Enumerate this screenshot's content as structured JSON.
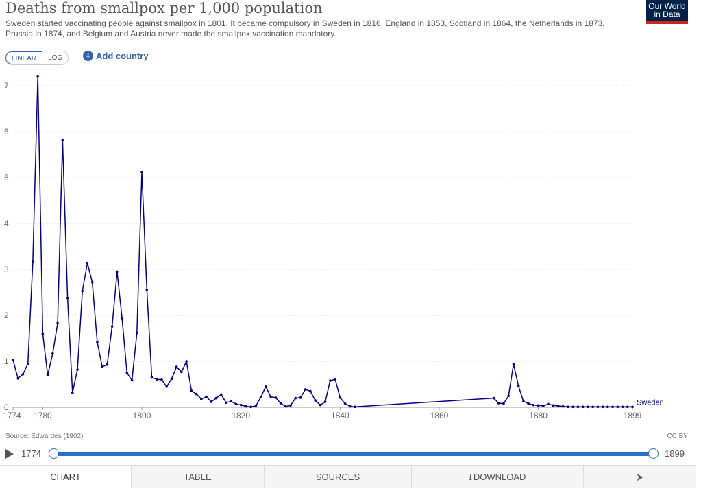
{
  "header": {
    "title": "Deaths from smallpox per 1,000 population",
    "subtitle": "Sweden started vaccinating people against smallpox in 1801. It became compulsory in Sweden in 1816, England in 1853, Scotland in 1864, the Netherlands in 1873, Prussia in 1874, and Belgium and Austria never made the smallpox vaccination mandatory.",
    "logo_line1": "Our World",
    "logo_line2": "in Data"
  },
  "controls": {
    "linear_label": "LINEAR",
    "log_label": "LOG",
    "add_country_label": "Add country",
    "active_scale": "linear"
  },
  "footer": {
    "source": "Source: Edwardes (1902)",
    "license": "CC BY"
  },
  "timeline": {
    "start_label": "1774",
    "end_label": "1899"
  },
  "tabs": {
    "chart": "CHART",
    "table": "TABLE",
    "sources": "SOURCES",
    "download": "DOWNLOAD"
  },
  "colors": {
    "series": "#000080",
    "accent": "#3360a9",
    "timeline": "#2a72c9",
    "logo_bg": "#002147",
    "logo_bar": "#ce261e"
  },
  "chart_data": {
    "type": "line",
    "title": "Deaths from smallpox per 1,000 population",
    "xlim": [
      1774,
      1899
    ],
    "ylim": [
      0,
      7.3
    ],
    "x_ticks": [
      "1774",
      "1780",
      "1800",
      "1820",
      "1840",
      "1860",
      "1880",
      "1899"
    ],
    "x_tick_values": [
      1774,
      1780,
      1800,
      1820,
      1840,
      1860,
      1880,
      1899
    ],
    "y_ticks": [
      0,
      1,
      2,
      3,
      4,
      5,
      6,
      7
    ],
    "grid": "horizontal dotted",
    "series": [
      {
        "name": "Sweden",
        "x": [
          1774,
          1775,
          1776,
          1777,
          1778,
          1779,
          1780,
          1781,
          1782,
          1783,
          1784,
          1785,
          1786,
          1787,
          1788,
          1789,
          1790,
          1791,
          1792,
          1793,
          1794,
          1795,
          1796,
          1797,
          1798,
          1799,
          1800,
          1801,
          1802,
          1803,
          1804,
          1805,
          1806,
          1807,
          1808,
          1809,
          1810,
          1811,
          1812,
          1813,
          1814,
          1815,
          1816,
          1817,
          1818,
          1819,
          1820,
          1821,
          1822,
          1823,
          1824,
          1825,
          1826,
          1827,
          1828,
          1829,
          1830,
          1831,
          1832,
          1833,
          1834,
          1835,
          1836,
          1837,
          1838,
          1839,
          1840,
          1841,
          1842,
          1843,
          1871,
          1872,
          1873,
          1874,
          1875,
          1876,
          1877,
          1878,
          1879,
          1880,
          1881,
          1882,
          1883,
          1884,
          1885,
          1886,
          1887,
          1888,
          1889,
          1890,
          1891,
          1892,
          1893,
          1894,
          1895,
          1896,
          1897,
          1898,
          1899
        ],
        "values": [
          1.03,
          0.63,
          0.72,
          0.95,
          3.18,
          7.2,
          1.6,
          0.7,
          1.17,
          1.83,
          5.82,
          2.38,
          0.32,
          0.82,
          2.53,
          3.14,
          2.72,
          1.42,
          0.88,
          0.93,
          1.76,
          2.95,
          1.94,
          0.75,
          0.59,
          1.62,
          5.12,
          2.56,
          0.65,
          0.61,
          0.6,
          0.45,
          0.62,
          0.88,
          0.77,
          1.0,
          0.36,
          0.29,
          0.18,
          0.23,
          0.12,
          0.2,
          0.28,
          0.1,
          0.13,
          0.07,
          0.05,
          0.02,
          0.01,
          0.03,
          0.22,
          0.45,
          0.23,
          0.21,
          0.09,
          0.02,
          0.04,
          0.2,
          0.21,
          0.39,
          0.35,
          0.15,
          0.05,
          0.12,
          0.58,
          0.61,
          0.21,
          0.08,
          0.02,
          0.01,
          0.2,
          0.09,
          0.08,
          0.25,
          0.94,
          0.46,
          0.13,
          0.08,
          0.05,
          0.04,
          0.03,
          0.07,
          0.04,
          0.03,
          0.02,
          0.01,
          0.01,
          0.01,
          0.01,
          0.01,
          0.01,
          0.01,
          0.01,
          0.01,
          0.01,
          0.01,
          0.01,
          0.01,
          0.01
        ]
      }
    ]
  }
}
